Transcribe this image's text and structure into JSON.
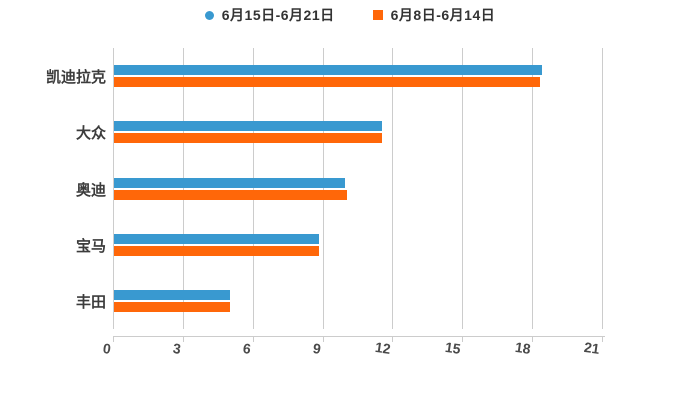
{
  "chart_data": {
    "type": "bar",
    "orientation": "horizontal",
    "title": "",
    "categories": [
      "凯迪拉克",
      "大众",
      "奥迪",
      "宝马",
      "丰田"
    ],
    "series": [
      {
        "name": "6月15日-6月21日",
        "color": "#3999d0",
        "marker": "circle",
        "values": [
          18.4,
          11.5,
          9.9,
          8.8,
          5.0
        ]
      },
      {
        "name": "6月8日-6月14日",
        "color": "#ff6709",
        "marker": "square",
        "values": [
          18.3,
          11.5,
          10.0,
          8.8,
          5.0
        ]
      }
    ],
    "xlim": [
      0,
      21
    ],
    "xticks": [
      0,
      3,
      6,
      9,
      12,
      15,
      18,
      21
    ],
    "xlabel": "",
    "ylabel": "",
    "grid": true,
    "legend_position": "top",
    "style": {
      "grid_color": "#cccccc",
      "axis_color": "#cccccc",
      "tick_label_color": "#4a4a4a",
      "category_label_color": "#3c3c3c",
      "legend_text_color": "#333333",
      "background": "#ffffff"
    }
  }
}
